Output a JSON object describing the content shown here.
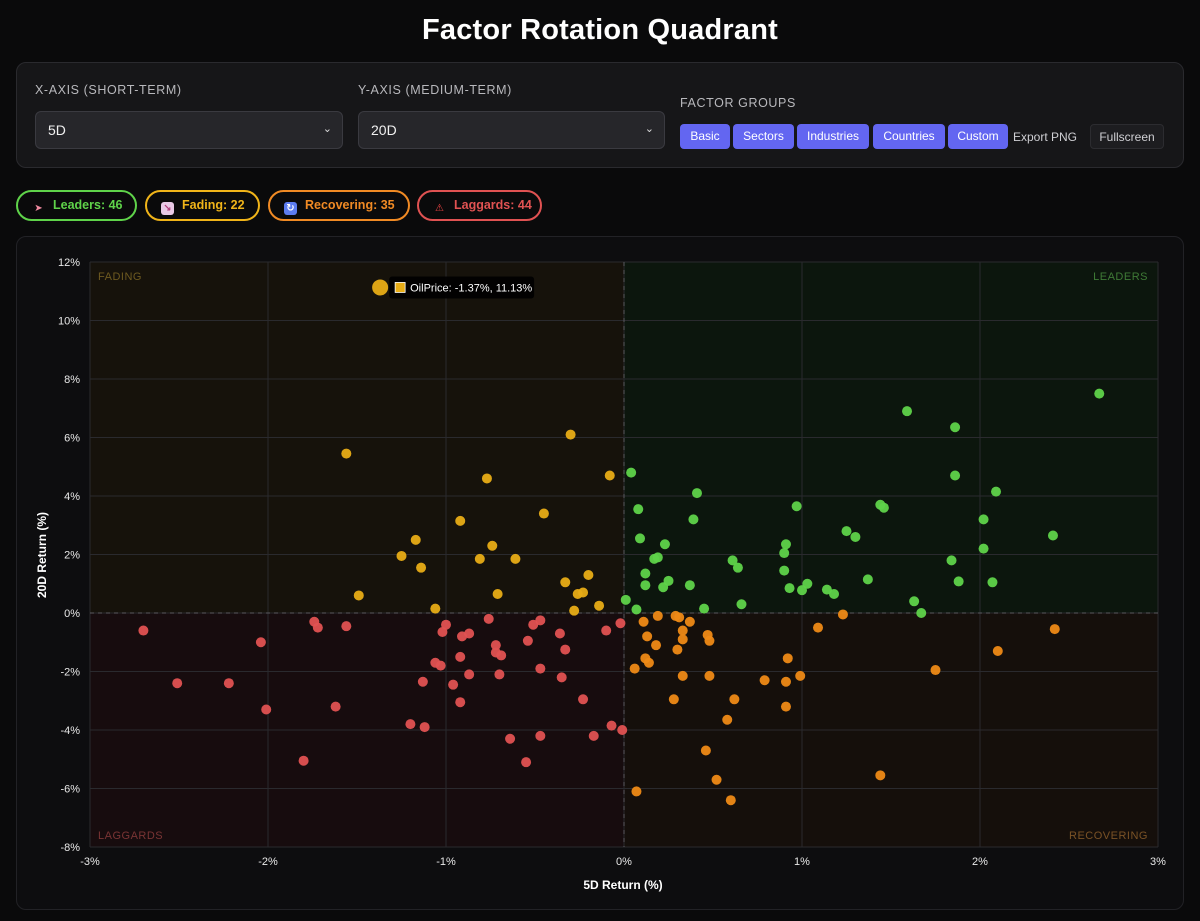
{
  "title": "Factor Rotation Quadrant",
  "controls": {
    "x_axis_label": "X-AXIS (SHORT-TERM)",
    "x_axis_value": "5D",
    "y_axis_label": "Y-AXIS (MEDIUM-TERM)",
    "y_axis_value": "20D",
    "groups_label": "FACTOR GROUPS",
    "groups": [
      "Basic",
      "Sectors",
      "Industries",
      "Countries",
      "Custom"
    ],
    "export_label": "Export PNG",
    "fullscreen_label": "Fullscreen"
  },
  "summary": {
    "leaders": {
      "label": "Leaders:",
      "count": "46",
      "color": "#5fd34a",
      "icon": "rocket-icon"
    },
    "fading": {
      "label": "Fading:",
      "count": "22",
      "color": "#f0b419",
      "icon": "trend-down-icon"
    },
    "recovering": {
      "label": "Recovering:",
      "count": "35",
      "color": "#f08a24",
      "icon": "refresh-icon"
    },
    "laggards": {
      "label": "Laggards:",
      "count": "44",
      "color": "#e05252",
      "icon": "warning-icon"
    }
  },
  "chart_data": {
    "type": "scatter",
    "title": "",
    "xlabel": "5D Return (%)",
    "ylabel": "20D Return (%)",
    "xlim": [
      -3,
      3
    ],
    "ylim": [
      -8,
      12
    ],
    "x_ticks": [
      "-3%",
      "-2%",
      "-1%",
      "0%",
      "1%",
      "2%",
      "3%"
    ],
    "x_tick_values": [
      -3,
      -2,
      -1,
      0,
      1,
      2,
      3
    ],
    "y_ticks": [
      "12%",
      "10%",
      "8%",
      "6%",
      "4%",
      "2%",
      "0%",
      "-2%",
      "-4%",
      "-6%",
      "-8%"
    ],
    "y_tick_values": [
      12,
      10,
      8,
      6,
      4,
      2,
      0,
      -2,
      -4,
      -6,
      -8
    ],
    "quadrant_labels": {
      "fading": "FADING",
      "leaders": "LEADERS",
      "laggards": "LAGGARDS",
      "recovering": "RECOVERING"
    },
    "colors": {
      "leaders": "#5fd34a",
      "fading": "#e8ad16",
      "recovering": "#ee8a16",
      "laggards": "#e05252"
    },
    "tooltip": {
      "text": "OilPrice: -1.37%, 11.13%",
      "x": -1.37,
      "y": 11.13
    },
    "series": [
      {
        "name": "Leaders",
        "key": "leaders",
        "points": [
          [
            0.04,
            4.8
          ],
          [
            0.08,
            3.55
          ],
          [
            0.09,
            2.55
          ],
          [
            0.12,
            1.35
          ],
          [
            0.12,
            0.95
          ],
          [
            0.17,
            1.85
          ],
          [
            0.19,
            1.9
          ],
          [
            0.22,
            0.88
          ],
          [
            0.23,
            2.35
          ],
          [
            0.25,
            1.1
          ],
          [
            0.37,
            0.95
          ],
          [
            0.39,
            3.2
          ],
          [
            0.41,
            4.1
          ],
          [
            0.45,
            0.15
          ],
          [
            0.61,
            1.8
          ],
          [
            0.64,
            1.55
          ],
          [
            0.66,
            0.3
          ],
          [
            0.9,
            2.05
          ],
          [
            0.9,
            1.45
          ],
          [
            0.91,
            2.35
          ],
          [
            0.93,
            0.85
          ],
          [
            0.97,
            3.65
          ],
          [
            1.0,
            0.78
          ],
          [
            1.03,
            1.0
          ],
          [
            1.14,
            0.8
          ],
          [
            1.18,
            0.65
          ],
          [
            1.25,
            2.8
          ],
          [
            1.3,
            2.6
          ],
          [
            1.37,
            1.15
          ],
          [
            1.44,
            3.7
          ],
          [
            1.46,
            3.6
          ],
          [
            1.59,
            6.9
          ],
          [
            1.63,
            0.4
          ],
          [
            1.67,
            0.0
          ],
          [
            1.84,
            1.8
          ],
          [
            1.86,
            6.35
          ],
          [
            1.86,
            4.7
          ],
          [
            1.88,
            1.08
          ],
          [
            2.02,
            3.2
          ],
          [
            2.02,
            2.2
          ],
          [
            2.07,
            1.05
          ],
          [
            2.09,
            4.15
          ],
          [
            2.41,
            2.65
          ],
          [
            2.67,
            7.5
          ],
          [
            0.01,
            0.45
          ],
          [
            0.07,
            0.12
          ]
        ]
      },
      {
        "name": "Fading",
        "key": "fading",
        "points": [
          [
            -1.56,
            5.45
          ],
          [
            -1.49,
            0.6
          ],
          [
            -1.25,
            1.95
          ],
          [
            -1.17,
            2.5
          ],
          [
            -1.14,
            1.55
          ],
          [
            -1.06,
            0.15
          ],
          [
            -0.92,
            3.15
          ],
          [
            -0.81,
            1.85
          ],
          [
            -0.77,
            4.6
          ],
          [
            -0.74,
            2.3
          ],
          [
            -0.71,
            0.65
          ],
          [
            -0.61,
            1.85
          ],
          [
            -0.45,
            3.4
          ],
          [
            -0.33,
            1.05
          ],
          [
            -0.3,
            6.1
          ],
          [
            -0.28,
            0.08
          ],
          [
            -0.26,
            0.65
          ],
          [
            -0.23,
            0.7
          ],
          [
            -0.2,
            1.3
          ],
          [
            -0.14,
            0.25
          ],
          [
            -0.08,
            4.7
          ],
          [
            -1.37,
            11.13
          ]
        ]
      },
      {
        "name": "Recovering",
        "key": "recovering",
        "points": [
          [
            0.06,
            -1.9
          ],
          [
            0.07,
            -6.1
          ],
          [
            0.11,
            -0.3
          ],
          [
            0.12,
            -1.55
          ],
          [
            0.13,
            -0.8
          ],
          [
            0.14,
            -1.7
          ],
          [
            0.18,
            -1.1
          ],
          [
            0.19,
            -0.1
          ],
          [
            0.28,
            -2.95
          ],
          [
            0.29,
            -0.1
          ],
          [
            0.3,
            -1.25
          ],
          [
            0.31,
            -0.15
          ],
          [
            0.33,
            -0.9
          ],
          [
            0.33,
            -0.6
          ],
          [
            0.33,
            -2.15
          ],
          [
            0.37,
            -0.3
          ],
          [
            0.46,
            -4.7
          ],
          [
            0.47,
            -0.75
          ],
          [
            0.48,
            -0.95
          ],
          [
            0.48,
            -2.15
          ],
          [
            0.52,
            -5.7
          ],
          [
            0.58,
            -3.65
          ],
          [
            0.6,
            -6.4
          ],
          [
            0.62,
            -2.95
          ],
          [
            0.79,
            -2.3
          ],
          [
            0.91,
            -2.35
          ],
          [
            0.91,
            -3.2
          ],
          [
            0.92,
            -1.55
          ],
          [
            0.99,
            -2.15
          ],
          [
            1.09,
            -0.5
          ],
          [
            1.23,
            -0.05
          ],
          [
            1.44,
            -5.55
          ],
          [
            1.75,
            -1.95
          ],
          [
            2.1,
            -1.3
          ],
          [
            2.42,
            -0.55
          ]
        ]
      },
      {
        "name": "Laggards",
        "key": "laggards",
        "points": [
          [
            -2.7,
            -0.6
          ],
          [
            -2.51,
            -2.4
          ],
          [
            -2.22,
            -2.4
          ],
          [
            -2.04,
            -1.0
          ],
          [
            -2.01,
            -3.3
          ],
          [
            -1.8,
            -5.05
          ],
          [
            -1.62,
            -3.2
          ],
          [
            -1.74,
            -0.3
          ],
          [
            -1.72,
            -0.5
          ],
          [
            -1.56,
            -0.45
          ],
          [
            -1.2,
            -3.8
          ],
          [
            -1.13,
            -2.35
          ],
          [
            -1.12,
            -3.9
          ],
          [
            -1.06,
            -1.7
          ],
          [
            -1.03,
            -1.8
          ],
          [
            -1.02,
            -0.65
          ],
          [
            -1.0,
            -0.4
          ],
          [
            -0.96,
            -2.45
          ],
          [
            -0.92,
            -1.5
          ],
          [
            -0.92,
            -3.05
          ],
          [
            -0.91,
            -0.8
          ],
          [
            -0.87,
            -0.7
          ],
          [
            -0.87,
            -2.1
          ],
          [
            -0.76,
            -0.2
          ],
          [
            -0.72,
            -1.35
          ],
          [
            -0.72,
            -1.1
          ],
          [
            -0.7,
            -2.1
          ],
          [
            -0.69,
            -1.45
          ],
          [
            -0.64,
            -4.3
          ],
          [
            -0.55,
            -5.1
          ],
          [
            -0.54,
            -0.95
          ],
          [
            -0.51,
            -0.4
          ],
          [
            -0.47,
            -0.25
          ],
          [
            -0.47,
            -1.9
          ],
          [
            -0.47,
            -4.2
          ],
          [
            -0.36,
            -0.7
          ],
          [
            -0.35,
            -2.2
          ],
          [
            -0.33,
            -1.25
          ],
          [
            -0.23,
            -2.95
          ],
          [
            -0.17,
            -4.2
          ],
          [
            -0.1,
            -0.6
          ],
          [
            -0.07,
            -3.85
          ],
          [
            -0.02,
            -0.35
          ],
          [
            -0.01,
            -4.0
          ]
        ]
      }
    ]
  }
}
